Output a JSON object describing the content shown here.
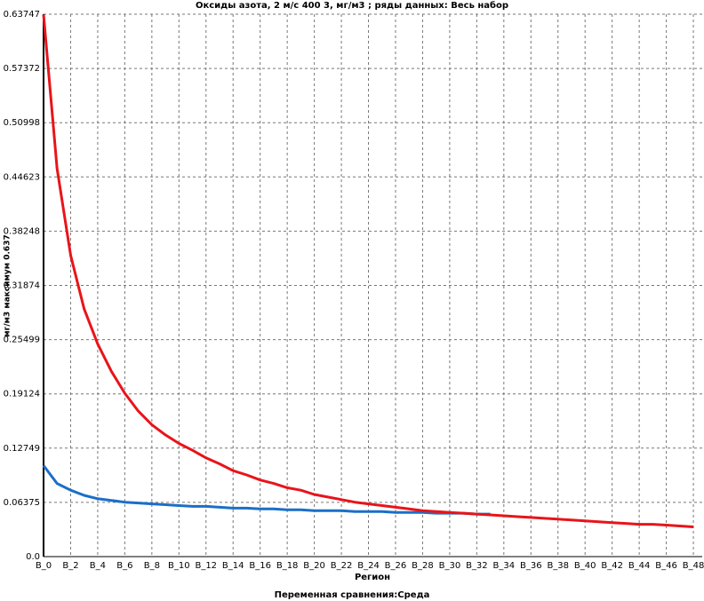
{
  "chart_data": {
    "type": "line",
    "title": "Оксиды азота, 2 м/с 400 3,  мг/м3  ; ряды данных: Весь набор",
    "y_label": "мг/м3  максимум 0.637",
    "x_label": "Регион",
    "footer": "Переменная сравнения:Среда",
    "categories": [
      "B_0",
      null,
      "B_2",
      null,
      "B_4",
      null,
      "B_6",
      null,
      "B_8",
      null,
      "B_10",
      null,
      "B_12",
      null,
      "B_14",
      null,
      "B_16",
      null,
      "B_18",
      null,
      "B_20",
      null,
      "B_22",
      null,
      "B_24",
      null,
      "B_26",
      null,
      "B_28",
      null,
      "B_30",
      null,
      "B_32",
      null,
      "B_34",
      null,
      "B_36",
      null,
      "B_38",
      null,
      "B_40",
      null,
      "B_42",
      null,
      "B_44",
      null,
      "B_46",
      null,
      "B_48"
    ],
    "series": [
      {
        "color": "#e8141a",
        "values": [
          0.637,
          0.456,
          0.354,
          0.291,
          0.25,
          0.218,
          0.192,
          0.171,
          0.155,
          0.143,
          0.133,
          0.125,
          0.116,
          0.109,
          0.101,
          0.096,
          0.09,
          0.086,
          0.081,
          0.078,
          0.073,
          0.07,
          0.067,
          0.064,
          0.062,
          0.06,
          0.058,
          0.056,
          0.054,
          0.053,
          0.052,
          0.051,
          0.05,
          0.049,
          0.048,
          0.047,
          0.046,
          0.045,
          0.044,
          0.043,
          0.042,
          0.041,
          0.04,
          0.039,
          0.038,
          0.038,
          0.037,
          0.036,
          0.035
        ]
      },
      {
        "color": "#1a6fc8",
        "values": [
          0.107,
          0.086,
          0.078,
          0.072,
          0.068,
          0.066,
          0.064,
          0.063,
          0.062,
          0.061,
          0.06,
          0.059,
          0.059,
          0.058,
          0.057,
          0.057,
          0.056,
          0.056,
          0.055,
          0.055,
          0.054,
          0.054,
          0.054,
          0.053,
          0.053,
          0.053,
          0.052,
          0.052,
          0.052,
          0.051,
          0.051,
          0.051,
          0.05,
          0.05,
          null,
          null,
          null,
          null,
          null,
          null,
          null,
          null,
          null,
          null,
          null,
          null,
          null,
          null,
          null
        ]
      }
    ],
    "ylim": [
      0,
      0.63747
    ],
    "yticks": [
      {
        "value": 0,
        "label": "0.0"
      },
      0.06375,
      0.12749,
      0.19124,
      0.25499,
      0.31874,
      0.38248,
      0.44623,
      0.50998,
      0.57372,
      0.63747
    ],
    "grid": true
  }
}
